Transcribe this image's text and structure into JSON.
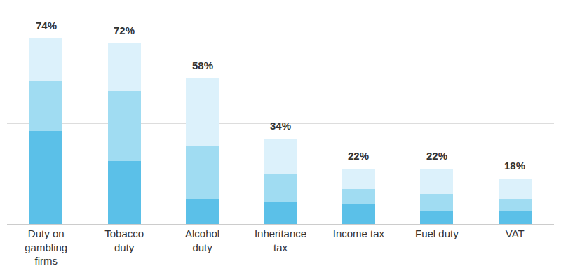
{
  "chart_data": {
    "type": "bar",
    "stacked": true,
    "categories": [
      "Duty on gambling firms",
      "Tobacco duty",
      "Alcohol duty",
      "Inheritance tax",
      "Income tax",
      "Fuel duty",
      "VAT"
    ],
    "series": [
      {
        "color": "#5bc0e8",
        "values": [
          37,
          25,
          10,
          9,
          8,
          5,
          5
        ]
      },
      {
        "color": "#a0dcf2",
        "values": [
          20,
          28,
          21,
          11,
          6,
          7,
          5
        ]
      },
      {
        "color": "#dcf1fb",
        "values": [
          17,
          19,
          27,
          14,
          8,
          10,
          8
        ]
      }
    ],
    "totals": [
      74,
      72,
      58,
      34,
      22,
      22,
      18
    ],
    "total_labels": [
      "74%",
      "72%",
      "58%",
      "34%",
      "22%",
      "22%",
      "18%"
    ],
    "ylim": [
      0,
      80
    ],
    "yticks": [
      0,
      20,
      40,
      60,
      80
    ],
    "grid": true,
    "tick_labels": "x"
  }
}
